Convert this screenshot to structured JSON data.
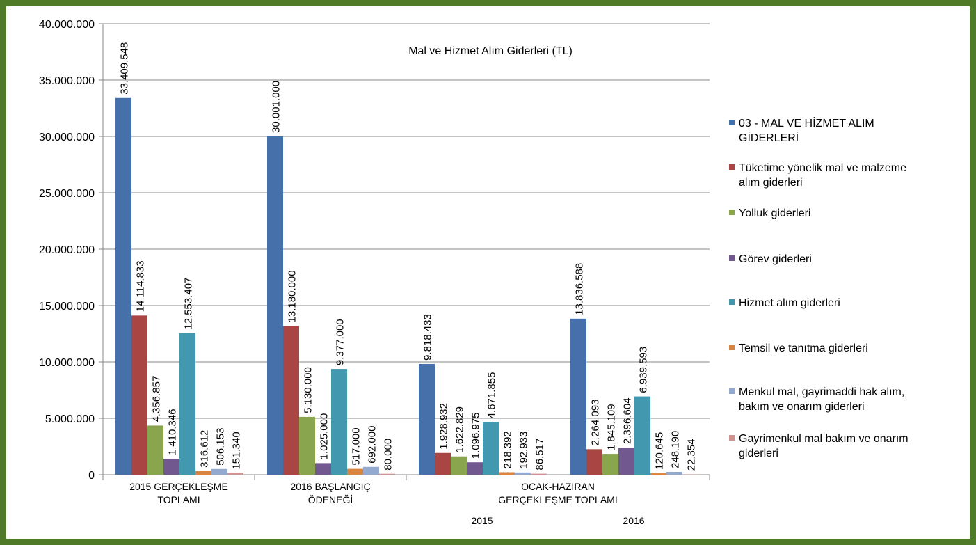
{
  "chart_data": {
    "type": "bar",
    "title": "Mal ve Hizmet Alım Giderleri (TL)",
    "xlabel": "",
    "ylabel": "",
    "ylim": [
      0,
      40000000
    ],
    "y_ticks": [
      "0",
      "5.000.000",
      "10.000.000",
      "15.000.000",
      "20.000.000",
      "25.000.000",
      "30.000.000",
      "35.000.000",
      "40.000.000"
    ],
    "grid": "horizontal",
    "legend_position": "right",
    "category_groups": [
      {
        "label_lines": [
          "2015 GERÇEKLEŞME",
          "TOPLAMI"
        ],
        "sub_labels": []
      },
      {
        "label_lines": [
          "2016 BAŞLANGIÇ",
          "ÖDENEĞİ"
        ],
        "sub_labels": []
      },
      {
        "label_lines": [
          "OCAK-HAZİRAN",
          "GERÇEKLEŞME TOPLAMI"
        ],
        "sub_labels": [
          "2015",
          "2016"
        ]
      }
    ],
    "categories": [
      "2015 GERÇEKLEŞME TOPLAMI",
      "2016 BAŞLANGIÇ ÖDENEĞİ",
      "OCAK-HAZİRAN 2015",
      "OCAK-HAZİRAN 2016"
    ],
    "series": [
      {
        "name": "03 - MAL VE HİZMET ALIM GİDERLERİ",
        "legend_lines": [
          "03 - MAL VE HİZMET ALIM",
          "GİDERLERİ"
        ],
        "color": "#4570a9",
        "values": [
          33409548,
          30001000,
          9818433,
          13836588
        ],
        "labels": [
          "33.409.548",
          "30.001.000",
          "9.818.433",
          "13.836.588"
        ]
      },
      {
        "name": "Tüketime yönelik mal ve malzeme alım giderleri",
        "legend_lines": [
          "Tüketime yönelik mal ve malzeme",
          "alım giderleri"
        ],
        "color": "#a94643",
        "values": [
          14114833,
          13180000,
          1928932,
          2264093
        ],
        "labels": [
          "14.114.833",
          "13.180.000",
          "1.928.932",
          "2.264.093"
        ]
      },
      {
        "name": "Yolluk giderleri",
        "legend_lines": [
          "Yolluk giderleri"
        ],
        "color": "#89a54e",
        "values": [
          4356857,
          5130000,
          1622829,
          1845109
        ],
        "labels": [
          "4.356.857",
          "5.130.000",
          "1.622.829",
          "1.845.109"
        ]
      },
      {
        "name": "Görev giderleri",
        "legend_lines": [
          "Görev giderleri"
        ],
        "color": "#71588f",
        "values": [
          1410346,
          1025000,
          1096975,
          2396604
        ],
        "labels": [
          "1.410.346",
          "1.025.000",
          "1.096.975",
          "2.396.604"
        ]
      },
      {
        "name": "Hizmet alım giderleri",
        "legend_lines": [
          "Hizmet alım giderleri"
        ],
        "color": "#4198af",
        "values": [
          12553407,
          9377000,
          4671855,
          6939593
        ],
        "labels": [
          "12.553.407",
          "9.377.000",
          "4.671.855",
          "6.939.593"
        ]
      },
      {
        "name": "Temsil ve tanıtma giderleri",
        "legend_lines": [
          "Temsil ve tanıtma giderleri"
        ],
        "color": "#db843d",
        "values": [
          316612,
          517000,
          218392,
          120645
        ],
        "labels": [
          "316.612",
          "517.000",
          "218.392",
          "120.645"
        ]
      },
      {
        "name": "Menkul mal, gayrimaddi hak alım, bakım ve onarım giderleri",
        "legend_lines": [
          "Menkul mal, gayrimaddi hak alım,",
          "bakım ve onarım  giderleri"
        ],
        "color": "#93a9cf",
        "values": [
          506153,
          692000,
          192933,
          248190
        ],
        "labels": [
          "506.153",
          "692.000",
          "192.933",
          "248.190"
        ]
      },
      {
        "name": "Gayrimenkul mal bakım ve onarım giderleri",
        "legend_lines": [
          "Gayrimenkul mal bakım ve onarım",
          "giderleri"
        ],
        "color": "#d19392",
        "values": [
          151340,
          80000,
          86517,
          22354
        ],
        "labels": [
          "151.340",
          "80.000",
          "86.517",
          "22.354"
        ]
      }
    ]
  }
}
